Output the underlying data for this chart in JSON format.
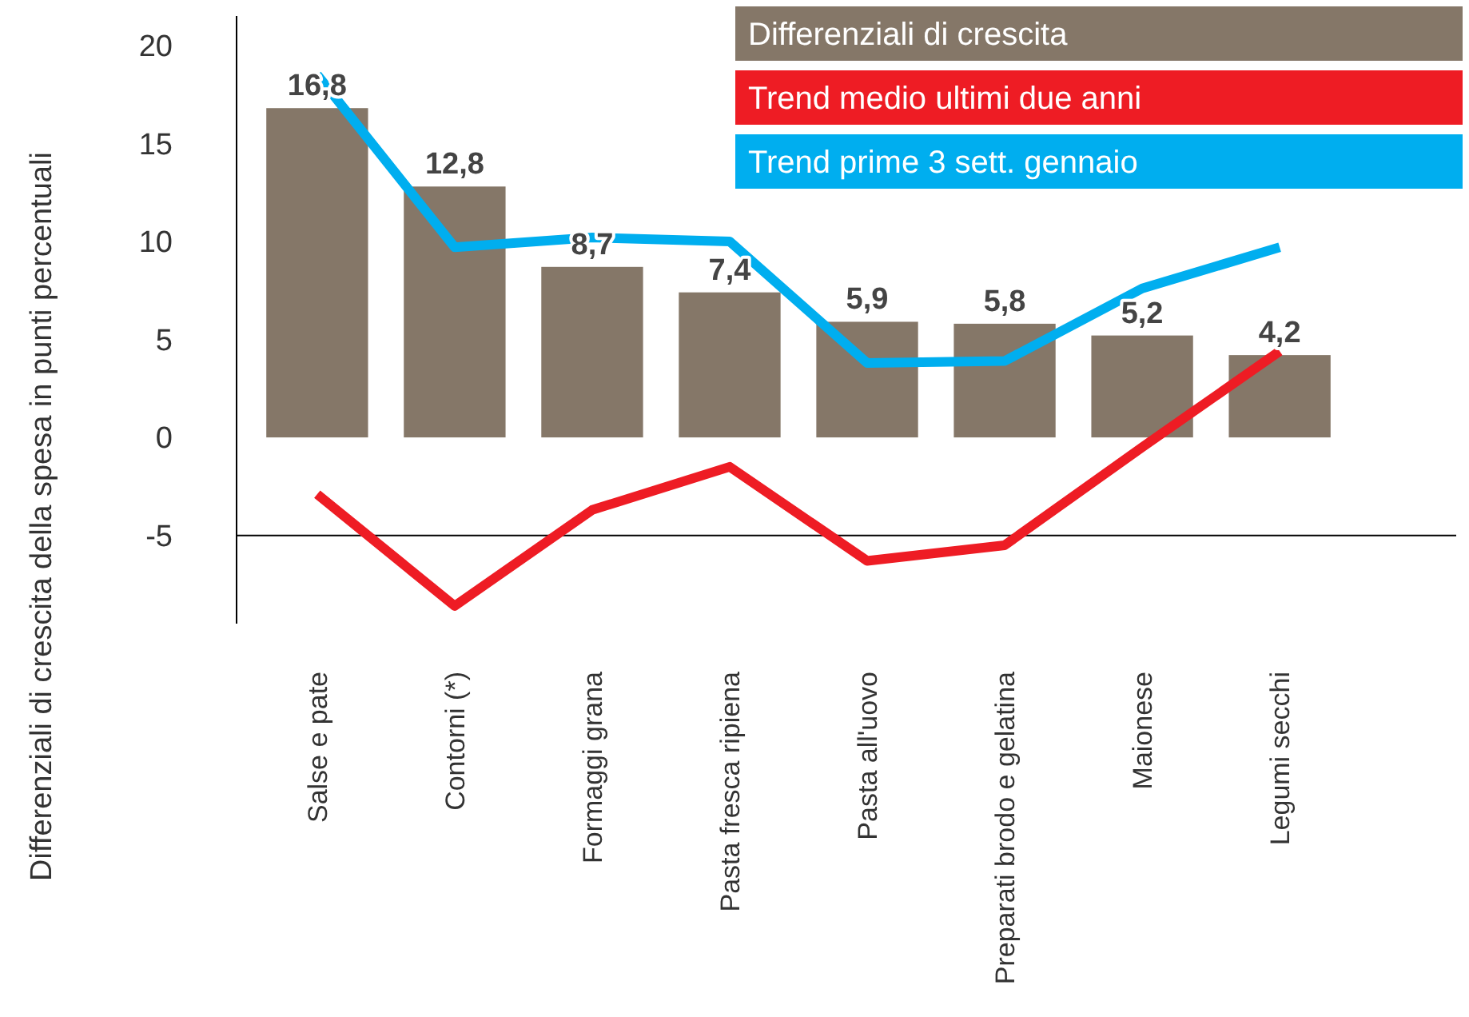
{
  "chart_data": {
    "type": "bar",
    "ylabel": "Differenziali di crescita della spesa in punti percentuali",
    "categories": [
      "Salse e pate",
      "Contorni (*)",
      "Formaggi grana",
      "Pasta fresca ripiena",
      "Pasta all'uovo",
      "Preparati brodo e gelatina",
      "Maionese",
      "Legumi secchi"
    ],
    "series": [
      {
        "name": "Differenziali di crescita",
        "color": "#857768",
        "values": [
          16.8,
          12.8,
          8.7,
          7.4,
          5.9,
          5.8,
          5.2,
          4.2
        ],
        "value_labels": [
          "16,8",
          "12,8",
          "8,7",
          "7,4",
          "5,9",
          "5,8",
          "5,2",
          "4,2"
        ]
      },
      {
        "name": "Trend medio ultimi due anni",
        "type": "line",
        "color": "#ee1c24",
        "values": [
          -2.9,
          -8.6,
          -3.7,
          -1.5,
          -6.3,
          -5.5,
          -0.5,
          4.4
        ]
      },
      {
        "name": "Trend prime 3 sett. gennaio",
        "type": "line",
        "color": "#00aeef",
        "values": [
          18.5,
          9.7,
          10.2,
          10.0,
          3.8,
          3.9,
          7.6,
          9.7
        ]
      }
    ],
    "ylim": [
      -9.5,
      21.5
    ],
    "yticks": [
      20,
      15,
      10,
      5,
      0,
      -5
    ],
    "ref_lines": [
      {
        "axis": "y",
        "value": -5,
        "color": "#000000"
      }
    ],
    "grid": false,
    "legend": "top right",
    "marker": "none",
    "line_style": "solid"
  }
}
